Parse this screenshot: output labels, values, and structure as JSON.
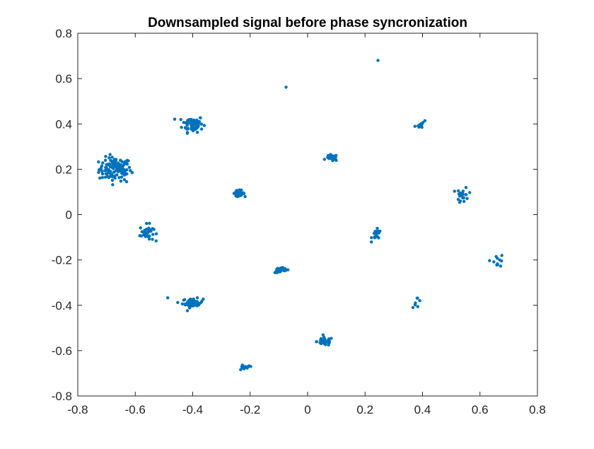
{
  "chart_data": {
    "type": "scatter",
    "title": "Downsampled signal before phase syncronization",
    "xlabel": "",
    "ylabel": "",
    "xlim": [
      -0.8,
      0.8
    ],
    "ylim": [
      -0.8,
      0.8
    ],
    "xticks": [
      -0.8,
      -0.6,
      -0.4,
      -0.2,
      0,
      0.2,
      0.4,
      0.6,
      0.8
    ],
    "xtick_labels": [
      "-0.8",
      "-0.6",
      "-0.4",
      "-0.2",
      "0",
      "0.2",
      "0.4",
      "0.6",
      "0.8"
    ],
    "yticks": [
      -0.8,
      -0.6,
      -0.4,
      -0.2,
      0,
      0.2,
      0.4,
      0.6,
      0.8
    ],
    "ytick_labels": [
      "-0.8",
      "-0.6",
      "-0.4",
      "-0.2",
      "0",
      "0.2",
      "0.4",
      "0.6",
      "0.8"
    ],
    "grid": false,
    "legend": "none",
    "marker_color": "#0072BD",
    "clusters": [
      {
        "center": [
          -0.67,
          0.2
        ],
        "spread": [
          0.028,
          0.026
        ],
        "count": 120
      },
      {
        "center": [
          -0.4,
          0.4
        ],
        "spread": [
          0.018,
          0.018
        ],
        "count": 70
      },
      {
        "center": [
          -0.56,
          -0.08
        ],
        "spread": [
          0.012,
          0.018
        ],
        "count": 35
      },
      {
        "center": [
          -0.4,
          -0.39
        ],
        "spread": [
          0.018,
          0.01
        ],
        "count": 55
      },
      {
        "center": [
          -0.24,
          0.095
        ],
        "spread": [
          0.01,
          0.006
        ],
        "count": 35
      },
      {
        "center": [
          -0.09,
          -0.245
        ],
        "spread": [
          0.012,
          0.006
        ],
        "count": 35
      },
      {
        "center": [
          0.06,
          -0.56
        ],
        "spread": [
          0.014,
          0.009
        ],
        "count": 40
      },
      {
        "center": [
          -0.22,
          -0.675
        ],
        "spread": [
          0.014,
          0.006
        ],
        "count": 12
      },
      {
        "center": [
          0.085,
          0.25
        ],
        "spread": [
          0.01,
          0.007
        ],
        "count": 25
      },
      {
        "center": [
          0.24,
          -0.09
        ],
        "spread": [
          0.008,
          0.012
        ],
        "count": 22
      },
      {
        "center": [
          0.54,
          0.085
        ],
        "spread": [
          0.01,
          0.018
        ],
        "count": 24
      },
      {
        "center": [
          0.66,
          -0.2
        ],
        "spread": [
          0.012,
          0.015
        ],
        "count": 12
      },
      {
        "center": [
          0.4,
          0.395
        ],
        "spread": [
          0.014,
          0.008
        ],
        "count": 10
      },
      {
        "center": [
          0.38,
          -0.385
        ],
        "spread": [
          0.008,
          0.012
        ],
        "count": 7
      }
    ],
    "outliers": [
      [
        0.245,
        0.68
      ],
      [
        -0.075,
        0.562
      ],
      [
        -0.487,
        -0.367
      ],
      [
        -0.63,
        0.145
      ],
      [
        0.045,
        -0.555
      ]
    ]
  }
}
